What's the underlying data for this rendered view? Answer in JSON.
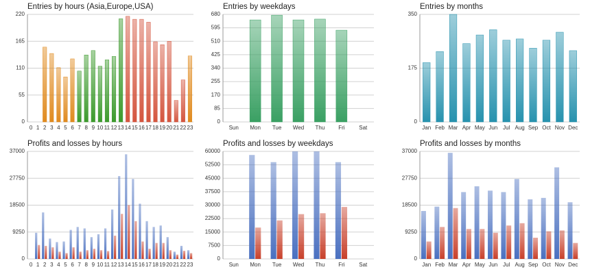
{
  "chart_data": [
    {
      "type": "bar",
      "title": "Entries by hours (Asia,Europe,USA)",
      "categories": [
        "0",
        "1",
        "2",
        "3",
        "4",
        "5",
        "6",
        "7",
        "8",
        "9",
        "10",
        "11",
        "12",
        "13",
        "14",
        "15",
        "16",
        "17",
        "18",
        "19",
        "20",
        "21",
        "22",
        "23"
      ],
      "values": [
        0,
        0,
        153,
        140,
        111,
        92,
        129,
        104,
        137,
        146,
        114,
        127,
        134,
        211,
        216,
        210,
        210,
        204,
        164,
        158,
        165,
        44,
        86,
        135
      ],
      "colors": [
        "#e08a1e",
        "#e08a1e",
        "#e08a1e",
        "#e08a1e",
        "#e08a1e",
        "#e08a1e",
        "#e08a1e",
        "#3c9a2c",
        "#3c9a2c",
        "#3c9a2c",
        "#3c9a2c",
        "#3c9a2c",
        "#3c9a2c",
        "#3c9a2c",
        "#d4553e",
        "#d4553e",
        "#d4553e",
        "#d4553e",
        "#d4553e",
        "#d4553e",
        "#d4553e",
        "#d4553e",
        "#d4553e",
        "#e08a1e"
      ],
      "ylim": [
        0,
        220
      ],
      "yticks": [
        0,
        55,
        110,
        165,
        220
      ],
      "grid": true
    },
    {
      "type": "bar",
      "title": "Entries by weekdays",
      "categories": [
        "Sun",
        "Mon",
        "Tue",
        "Wed",
        "Thu",
        "Fri",
        "Sat"
      ],
      "values": [
        0,
        645,
        675,
        645,
        650,
        580,
        0
      ],
      "color": "#3aa063",
      "ylim": [
        0,
        680
      ],
      "yticks": [
        0,
        85,
        170,
        255,
        340,
        425,
        510,
        595,
        680
      ],
      "grid": true
    },
    {
      "type": "bar",
      "title": "Entries by months",
      "categories": [
        "Jan",
        "Feb",
        "Mar",
        "Apr",
        "May",
        "Jun",
        "Jul",
        "Aug",
        "Sep",
        "Oct",
        "Nov",
        "Dec"
      ],
      "values": [
        193,
        229,
        350,
        255,
        283,
        300,
        266,
        270,
        240,
        266,
        292,
        232
      ],
      "color": "#2792ae",
      "ylim": [
        0,
        350
      ],
      "yticks": [
        0,
        175,
        350
      ],
      "grid": true
    },
    {
      "type": "bar",
      "title": "Profits and losses by hours",
      "categories": [
        "0",
        "1",
        "2",
        "3",
        "4",
        "5",
        "6",
        "7",
        "8",
        "9",
        "10",
        "11",
        "12",
        "13",
        "14",
        "15",
        "16",
        "17",
        "18",
        "19",
        "20",
        "21",
        "22",
        "23"
      ],
      "series": [
        {
          "color": "#4a70c0",
          "values": [
            0,
            9000,
            16000,
            7000,
            5800,
            6000,
            10000,
            11000,
            10500,
            7500,
            8500,
            10500,
            17000,
            28500,
            36000,
            27500,
            19000,
            13000,
            11000,
            11500,
            7500,
            2500,
            4500,
            3000
          ]
        },
        {
          "color": "#c8402a",
          "values": [
            0,
            4800,
            4500,
            4000,
            2500,
            2000,
            4000,
            2500,
            3000,
            3500,
            3000,
            2700,
            8000,
            15500,
            18500,
            13000,
            6000,
            3500,
            5500,
            5500,
            3000,
            1500,
            2800,
            2000
          ]
        }
      ],
      "ylim": [
        0,
        37000
      ],
      "yticks": [
        0,
        9250,
        18500,
        27750,
        37000
      ],
      "grid": true
    },
    {
      "type": "bar",
      "title": "Profits and losses by weekdays",
      "categories": [
        "Sun",
        "Mon",
        "Tue",
        "Wed",
        "Thu",
        "Fri",
        "Sat"
      ],
      "series": [
        {
          "color": "#4a70c0",
          "values": [
            0,
            58000,
            54000,
            60000,
            60000,
            54000,
            0
          ]
        },
        {
          "color": "#c8402a",
          "values": [
            0,
            17500,
            21500,
            25000,
            25500,
            29000,
            0
          ]
        }
      ],
      "ylim": [
        0,
        60000
      ],
      "yticks": [
        0,
        7500,
        15000,
        22500,
        30000,
        37500,
        45000,
        52500,
        60000
      ],
      "grid": true
    },
    {
      "type": "bar",
      "title": "Profits and losses by months",
      "categories": [
        "Jan",
        "Feb",
        "Mar",
        "Apr",
        "May",
        "Jun",
        "Jul",
        "Aug",
        "Sep",
        "Oct",
        "Nov",
        "Dec"
      ],
      "series": [
        {
          "color": "#4a70c0",
          "values": [
            16500,
            18000,
            36500,
            23000,
            25000,
            23500,
            23000,
            27500,
            20500,
            21000,
            31500,
            19500
          ]
        },
        {
          "color": "#c8402a",
          "values": [
            6000,
            11000,
            17500,
            10300,
            10300,
            9000,
            11500,
            12300,
            7300,
            9500,
            9800,
            5500
          ]
        }
      ],
      "ylim": [
        0,
        37000
      ],
      "yticks": [
        0,
        9250,
        18500,
        27750,
        37000
      ],
      "grid": true
    }
  ]
}
